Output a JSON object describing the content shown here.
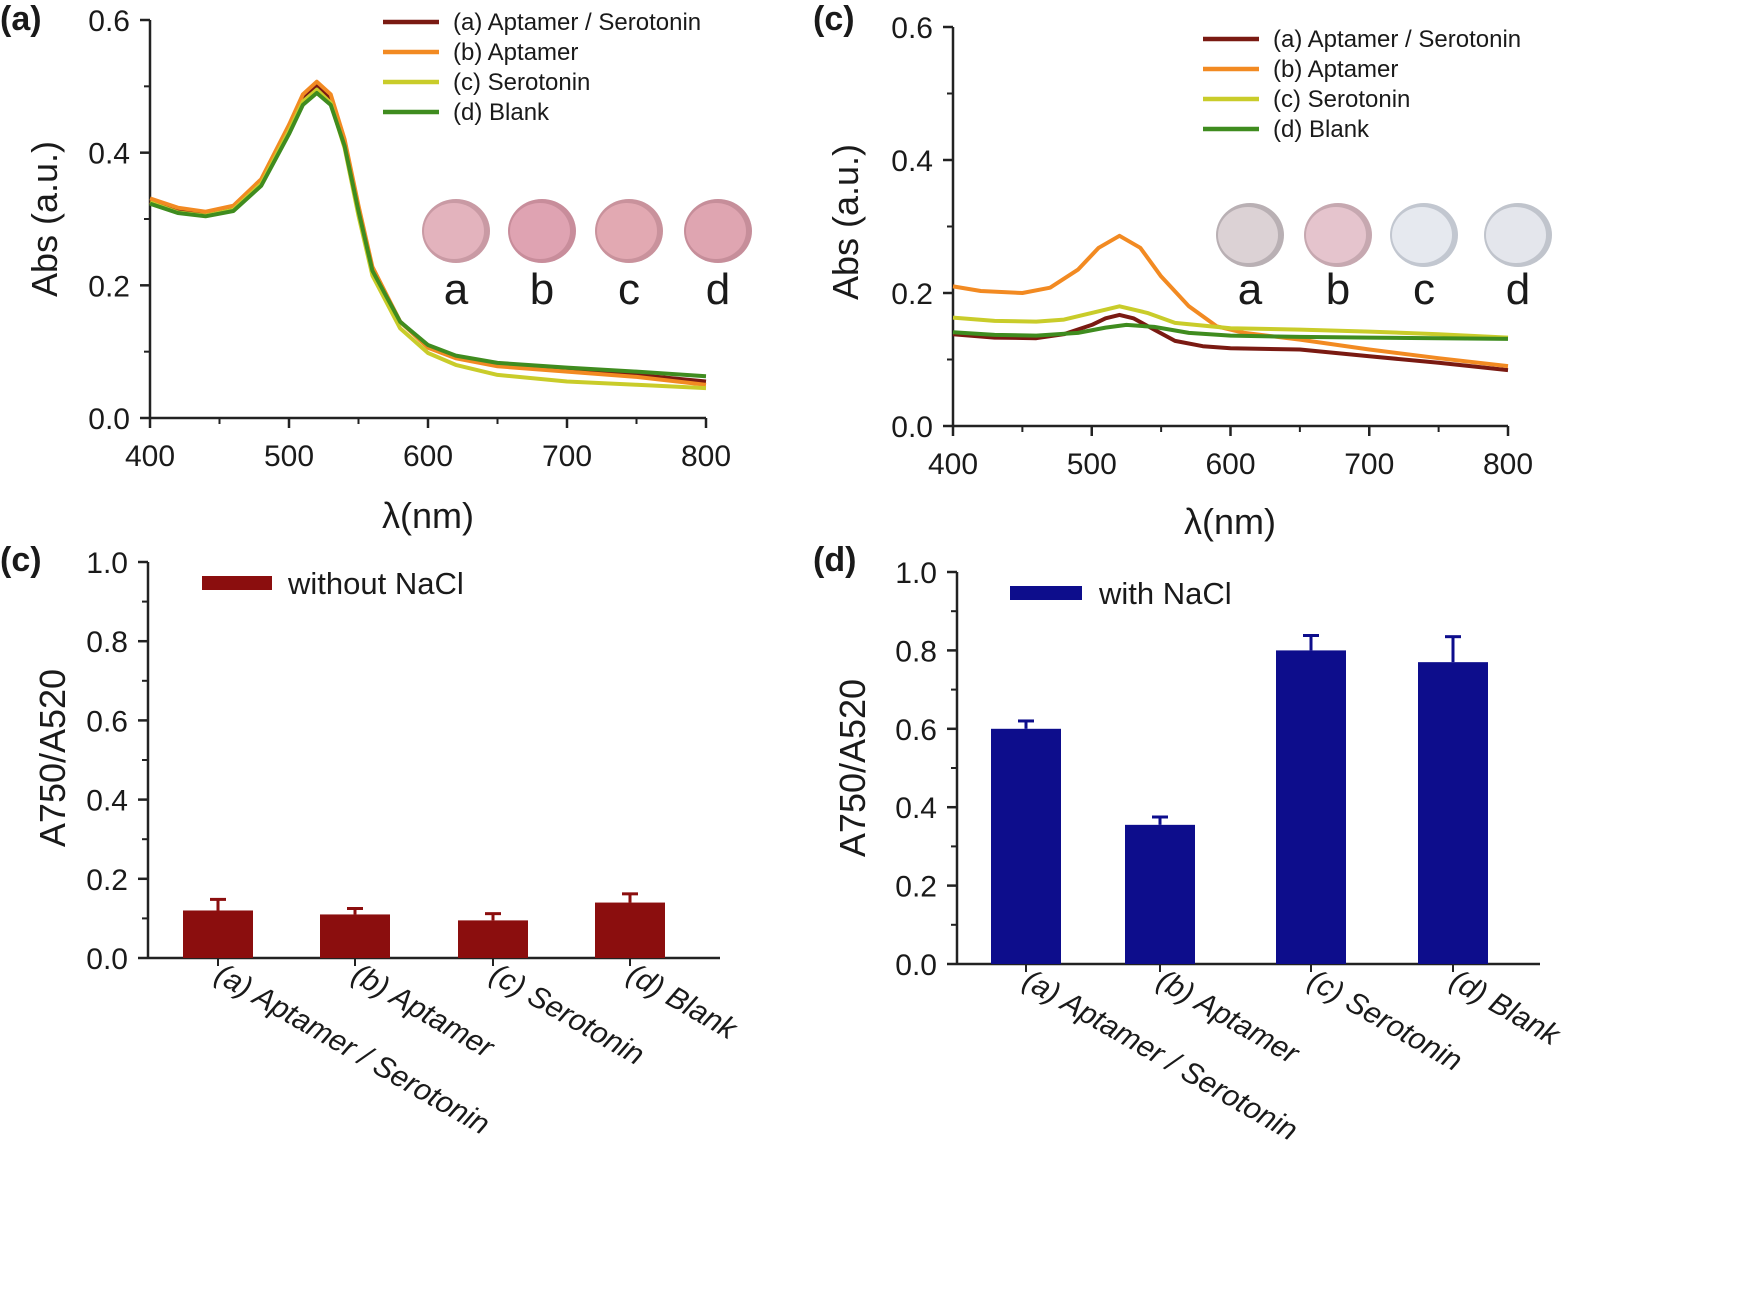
{
  "figure": {
    "chart_data": [
      {
        "type": "line",
        "panel": "(a)",
        "xlabel": "λ(nm)",
        "ylabel": "Abs (a.u.)",
        "xlim": [
          400,
          800
        ],
        "ylim": [
          0,
          0.6
        ],
        "xticks": [
          "400",
          "500",
          "600",
          "700",
          "800"
        ],
        "yticks": [
          "0.0",
          "0.2",
          "0.4",
          "0.6"
        ],
        "legend_position": "top-right",
        "series": [
          {
            "name": "(a) Aptamer / Serotonin",
            "color": "#7a1a12",
            "points": [
              [
                400,
                0.327
              ],
              [
                420,
                0.312
              ],
              [
                440,
                0.306
              ],
              [
                460,
                0.315
              ],
              [
                480,
                0.355
              ],
              [
                500,
                0.435
              ],
              [
                510,
                0.48
              ],
              [
                520,
                0.5
              ],
              [
                530,
                0.48
              ],
              [
                540,
                0.415
              ],
              [
                550,
                0.315
              ],
              [
                560,
                0.225
              ],
              [
                580,
                0.145
              ],
              [
                600,
                0.108
              ],
              [
                620,
                0.093
              ],
              [
                650,
                0.08
              ],
              [
                700,
                0.072
              ],
              [
                750,
                0.065
              ],
              [
                800,
                0.055
              ]
            ]
          },
          {
            "name": "(b) Aptamer",
            "color": "#f28a22",
            "points": [
              [
                400,
                0.331
              ],
              [
                420,
                0.317
              ],
              [
                440,
                0.311
              ],
              [
                460,
                0.32
              ],
              [
                480,
                0.36
              ],
              [
                500,
                0.442
              ],
              [
                510,
                0.488
              ],
              [
                520,
                0.507
              ],
              [
                530,
                0.488
              ],
              [
                540,
                0.42
              ],
              [
                550,
                0.32
              ],
              [
                560,
                0.228
              ],
              [
                580,
                0.145
              ],
              [
                600,
                0.106
              ],
              [
                620,
                0.09
              ],
              [
                650,
                0.078
              ],
              [
                700,
                0.07
              ],
              [
                750,
                0.062
              ],
              [
                800,
                0.05
              ]
            ]
          },
          {
            "name": "(c) Serotonin",
            "color": "#c9cc2a",
            "points": [
              [
                400,
                0.325
              ],
              [
                420,
                0.31
              ],
              [
                440,
                0.305
              ],
              [
                460,
                0.314
              ],
              [
                480,
                0.353
              ],
              [
                500,
                0.433
              ],
              [
                510,
                0.477
              ],
              [
                520,
                0.495
              ],
              [
                530,
                0.475
              ],
              [
                540,
                0.407
              ],
              [
                550,
                0.305
              ],
              [
                560,
                0.215
              ],
              [
                580,
                0.135
              ],
              [
                600,
                0.098
              ],
              [
                620,
                0.08
              ],
              [
                650,
                0.065
              ],
              [
                700,
                0.055
              ],
              [
                750,
                0.05
              ],
              [
                800,
                0.045
              ]
            ]
          },
          {
            "name": "(d) Blank",
            "color": "#3f8c1f",
            "points": [
              [
                400,
                0.323
              ],
              [
                420,
                0.309
              ],
              [
                440,
                0.304
              ],
              [
                460,
                0.312
              ],
              [
                480,
                0.35
              ],
              [
                500,
                0.428
              ],
              [
                510,
                0.472
              ],
              [
                520,
                0.49
              ],
              [
                530,
                0.472
              ],
              [
                540,
                0.41
              ],
              [
                550,
                0.312
              ],
              [
                560,
                0.222
              ],
              [
                580,
                0.145
              ],
              [
                600,
                0.11
              ],
              [
                620,
                0.094
              ],
              [
                650,
                0.083
              ],
              [
                700,
                0.076
              ],
              [
                750,
                0.07
              ],
              [
                800,
                0.063
              ]
            ]
          }
        ],
        "wells": [
          {
            "letter": "a",
            "fill": "#e3b3bd",
            "rim": "#c99aa4"
          },
          {
            "letter": "b",
            "fill": "#dfa3b2",
            "rim": "#c88d9b"
          },
          {
            "letter": "c",
            "fill": "#e2a9b2",
            "rim": "#c9929c"
          },
          {
            "letter": "d",
            "fill": "#dfa5b1",
            "rim": "#c68e9a"
          }
        ]
      },
      {
        "type": "line",
        "panel": "(c)",
        "xlabel": "λ(nm)",
        "ylabel": "Abs (a.u.)",
        "xlim": [
          400,
          800
        ],
        "ylim": [
          0,
          0.6
        ],
        "xticks": [
          "400",
          "500",
          "600",
          "700",
          "800"
        ],
        "yticks": [
          "0.0",
          "0.2",
          "0.4",
          "0.6"
        ],
        "legend_position": "top-right",
        "series": [
          {
            "name": "(a) Aptamer / Serotonin",
            "color": "#7a1a12",
            "points": [
              [
                400,
                0.138
              ],
              [
                430,
                0.133
              ],
              [
                460,
                0.132
              ],
              [
                480,
                0.138
              ],
              [
                500,
                0.152
              ],
              [
                510,
                0.162
              ],
              [
                520,
                0.167
              ],
              [
                530,
                0.162
              ],
              [
                545,
                0.145
              ],
              [
                560,
                0.128
              ],
              [
                580,
                0.12
              ],
              [
                600,
                0.117
              ],
              [
                650,
                0.115
              ],
              [
                700,
                0.105
              ],
              [
                750,
                0.095
              ],
              [
                800,
                0.084
              ]
            ]
          },
          {
            "name": "(b) Aptamer",
            "color": "#f28a22",
            "points": [
              [
                400,
                0.21
              ],
              [
                420,
                0.203
              ],
              [
                450,
                0.2
              ],
              [
                470,
                0.208
              ],
              [
                490,
                0.235
              ],
              [
                505,
                0.268
              ],
              [
                520,
                0.286
              ],
              [
                535,
                0.268
              ],
              [
                550,
                0.225
              ],
              [
                570,
                0.18
              ],
              [
                590,
                0.15
              ],
              [
                610,
                0.14
              ],
              [
                650,
                0.13
              ],
              [
                700,
                0.115
              ],
              [
                750,
                0.102
              ],
              [
                800,
                0.09
              ]
            ]
          },
          {
            "name": "(c) Serotonin",
            "color": "#c9cc2a",
            "points": [
              [
                400,
                0.163
              ],
              [
                430,
                0.158
              ],
              [
                460,
                0.157
              ],
              [
                480,
                0.16
              ],
              [
                500,
                0.17
              ],
              [
                520,
                0.18
              ],
              [
                540,
                0.17
              ],
              [
                560,
                0.155
              ],
              [
                600,
                0.147
              ],
              [
                650,
                0.145
              ],
              [
                700,
                0.142
              ],
              [
                750,
                0.138
              ],
              [
                800,
                0.133
              ]
            ]
          },
          {
            "name": "(d) Blank",
            "color": "#3f8c1f",
            "points": [
              [
                400,
                0.141
              ],
              [
                430,
                0.137
              ],
              [
                460,
                0.136
              ],
              [
                490,
                0.14
              ],
              [
                510,
                0.148
              ],
              [
                525,
                0.152
              ],
              [
                545,
                0.149
              ],
              [
                570,
                0.14
              ],
              [
                600,
                0.136
              ],
              [
                650,
                0.134
              ],
              [
                700,
                0.133
              ],
              [
                750,
                0.132
              ],
              [
                800,
                0.131
              ]
            ]
          }
        ],
        "wells": [
          {
            "letter": "a",
            "fill": "#dcd2d5",
            "rim": "#b9b0b4"
          },
          {
            "letter": "b",
            "fill": "#e5c4cd",
            "rim": "#c6a8b0"
          },
          {
            "letter": "c",
            "fill": "#e6e9ef",
            "rim": "#c2c7d0"
          },
          {
            "letter": "d",
            "fill": "#e4e6ec",
            "rim": "#c0c4cc"
          }
        ]
      },
      {
        "type": "bar",
        "panel": "(c)",
        "ylabel": "A750/A520",
        "ylim": [
          0,
          1.0
        ],
        "yticks": [
          "0.0",
          "0.2",
          "0.4",
          "0.6",
          "0.8",
          "1.0"
        ],
        "legend_position": "top-left",
        "legend": "without NaCl",
        "color": "#8b0e0e",
        "categories": [
          "(a) Aptamer / Serotonin",
          "(b) Aptamer",
          "(c) Serotonin",
          "(d) Blank"
        ],
        "values": [
          0.12,
          0.11,
          0.095,
          0.14
        ],
        "errors": [
          0.028,
          0.015,
          0.017,
          0.022
        ]
      },
      {
        "type": "bar",
        "panel": "(d)",
        "ylabel": "A750/A520",
        "ylim": [
          0,
          1.0
        ],
        "yticks": [
          "0.0",
          "0.2",
          "0.4",
          "0.6",
          "0.8",
          "1.0"
        ],
        "legend_position": "top-left",
        "legend": "with NaCl",
        "color": "#0d0d8c",
        "categories": [
          "(a) Aptamer / Serotonin",
          "(b) Aptamer",
          "(c) Serotonin",
          "(d) Blank"
        ],
        "values": [
          0.6,
          0.355,
          0.8,
          0.77
        ],
        "errors": [
          0.02,
          0.02,
          0.038,
          0.065
        ]
      }
    ]
  }
}
